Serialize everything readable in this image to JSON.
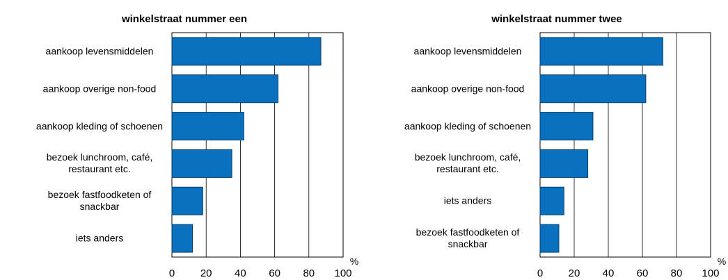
{
  "chart_data": [
    {
      "type": "bar",
      "orientation": "horizontal",
      "title": "winkelstraat nummer een",
      "xlabel": "%",
      "categories": [
        "aankoop levensmiddelen",
        "aankoop overige non-food",
        "aankoop kleding of schoenen",
        "bezoek lunchroom, café,\nrestaurant etc.",
        "bezoek fastfoodketen of\nsnackbar",
        "iets anders"
      ],
      "values": [
        87,
        62,
        42,
        35,
        18,
        12
      ],
      "color": "#0a70c0",
      "xlim": [
        0,
        100
      ],
      "xticks": [
        0,
        20,
        40,
        60,
        80,
        100
      ],
      "grid": true
    },
    {
      "type": "bar",
      "orientation": "horizontal",
      "title": "winkelstraat nummer twee",
      "xlabel": "%",
      "categories": [
        "aankoop levensmiddelen",
        "aankoop overige non-food",
        "aankoop kleding of schoenen",
        "bezoek lunchroom, café,\nrestaurant etc.",
        "iets anders",
        "bezoek fastfoodketen of\nsnackbar"
      ],
      "values": [
        72,
        62,
        31,
        28,
        14,
        11
      ],
      "color": "#0a70c0",
      "xlim": [
        0,
        100
      ],
      "xticks": [
        0,
        20,
        40,
        60,
        80,
        100
      ],
      "grid": true
    }
  ]
}
